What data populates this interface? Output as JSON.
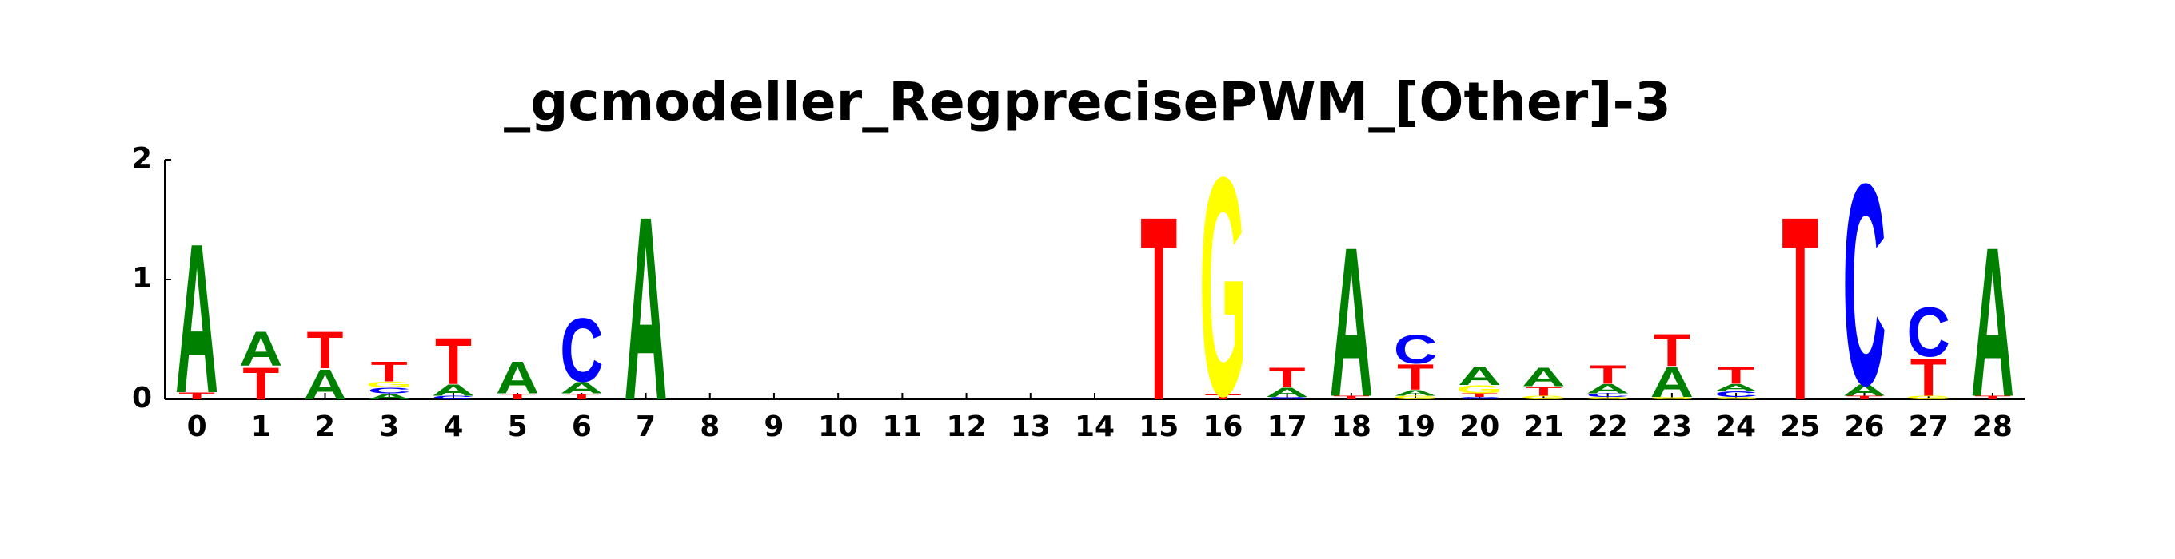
{
  "chart_data": {
    "type": "logo",
    "title": "_gcmodeller_RegprecisePWM_[Other]-3",
    "categories": [
      "0",
      "1",
      "2",
      "3",
      "4",
      "5",
      "6",
      "7",
      "8",
      "9",
      "10",
      "11",
      "12",
      "13",
      "14",
      "15",
      "16",
      "17",
      "18",
      "19",
      "20",
      "21",
      "22",
      "23",
      "24",
      "25",
      "26",
      "27",
      "28"
    ],
    "series": [
      {
        "name": "A",
        "color": "#008000",
        "values": [
          1.3,
          0.3,
          0.26,
          0.05,
          0.1,
          0.28,
          0.1,
          1.6,
          0,
          0,
          0,
          0,
          0,
          0,
          0,
          0,
          0,
          0.08,
          1.3,
          0.05,
          0.16,
          0.16,
          0.08,
          0.26,
          0.06,
          0,
          0.1,
          0,
          1.3
        ]
      },
      {
        "name": "C",
        "color": "#0000ff",
        "values": [
          0,
          0,
          0,
          0.05,
          0.03,
          0,
          0.55,
          0,
          0,
          0,
          0,
          0,
          0,
          0,
          0,
          0,
          0,
          0.02,
          0,
          0.25,
          0.02,
          0,
          0.03,
          0,
          0.05,
          0,
          1.75,
          0.43,
          0
        ]
      },
      {
        "name": "G",
        "color": "#ffff00",
        "values": [
          0,
          0,
          0,
          0.05,
          0,
          0,
          0,
          0,
          0,
          0,
          0,
          0,
          0,
          0,
          0,
          0,
          1.9,
          0,
          0,
          0.03,
          0.07,
          0.03,
          0.02,
          0.02,
          0.02,
          0,
          0,
          0.03,
          0
        ]
      },
      {
        "name": "T",
        "color": "#ff0000",
        "values": [
          0.06,
          0.28,
          0.32,
          0.17,
          0.4,
          0.05,
          0.05,
          0,
          0,
          0,
          0,
          0,
          0,
          0,
          0,
          1.6,
          0.04,
          0.17,
          0.03,
          0.22,
          0.03,
          0.08,
          0.16,
          0.28,
          0.15,
          1.6,
          0.03,
          0.33,
          0.03
        ]
      }
    ],
    "ylim": [
      0,
      2
    ],
    "yticks": [
      0,
      1,
      2
    ]
  }
}
